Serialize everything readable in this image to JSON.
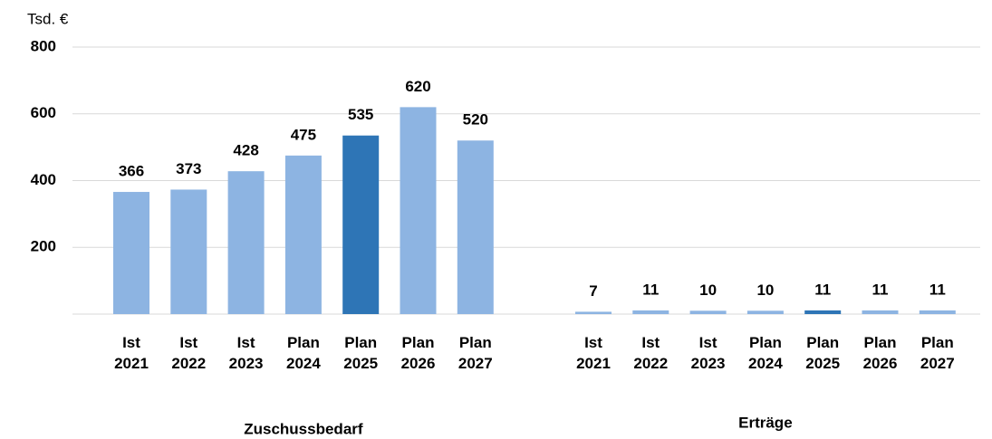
{
  "chart_data": {
    "type": "bar",
    "y_label": "Tsd. €",
    "ylim": [
      0,
      800
    ],
    "yticks": [
      200,
      400,
      600,
      800
    ],
    "grid": true,
    "groups": [
      {
        "name": "Zuschussbedarf",
        "categories": [
          [
            "Ist",
            "2021"
          ],
          [
            "Ist",
            "2022"
          ],
          [
            "Ist",
            "2023"
          ],
          [
            "Plan",
            "2024"
          ],
          [
            "Plan",
            "2025"
          ],
          [
            "Plan",
            "2026"
          ],
          [
            "Plan",
            "2027"
          ]
        ],
        "values": [
          366,
          373,
          428,
          475,
          535,
          620,
          520
        ],
        "colors": [
          "#8db4e2",
          "#8db4e2",
          "#8db4e2",
          "#8db4e2",
          "#2e75b6",
          "#8db4e2",
          "#8db4e2"
        ]
      },
      {
        "name": "Erträge",
        "categories": [
          [
            "Ist",
            "2021"
          ],
          [
            "Ist",
            "2022"
          ],
          [
            "Ist",
            "2023"
          ],
          [
            "Plan",
            "2024"
          ],
          [
            "Plan",
            "2025"
          ],
          [
            "Plan",
            "2026"
          ],
          [
            "Plan",
            "2027"
          ]
        ],
        "values": [
          7,
          11,
          10,
          10,
          11,
          11,
          11
        ],
        "colors": [
          "#8db4e2",
          "#8db4e2",
          "#8db4e2",
          "#8db4e2",
          "#2e75b6",
          "#8db4e2",
          "#8db4e2"
        ]
      }
    ]
  }
}
